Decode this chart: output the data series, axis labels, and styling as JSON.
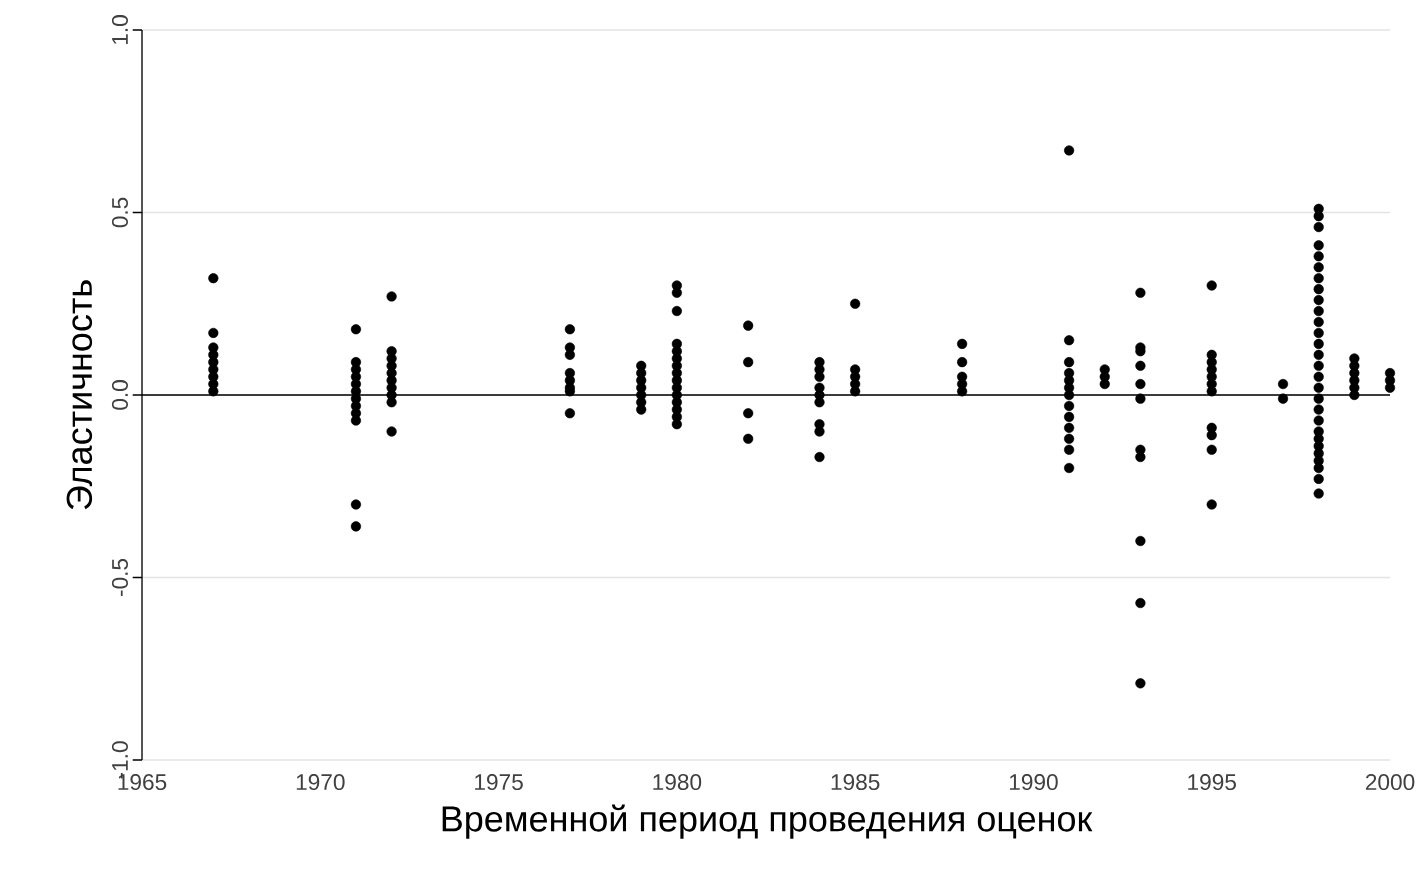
{
  "chart_data": {
    "type": "scatter",
    "xlabel": "Временной период проведения оценок",
    "ylabel": "Эластичность",
    "xlim": [
      1965,
      2000
    ],
    "ylim": [
      -1,
      1
    ],
    "xticks": [
      1965,
      1970,
      1975,
      1980,
      1985,
      1990,
      1995,
      2000
    ],
    "yticks": [
      {
        "value": -1,
        "label": "-1.0"
      },
      {
        "value": -0.5,
        "label": "-0.5"
      },
      {
        "value": 0,
        "label": "0.0"
      },
      {
        "value": 0.5,
        "label": "0.5"
      },
      {
        "value": 1,
        "label": "1.0"
      }
    ],
    "grid": "y",
    "ref_lines": [
      {
        "axis": "y",
        "value": 0,
        "color": "#000000"
      }
    ],
    "series": [
      {
        "color": "#000000",
        "x": [
          1967,
          1967,
          1967,
          1967,
          1967,
          1967,
          1967,
          1967,
          1967,
          1971,
          1971,
          1971,
          1971,
          1971,
          1971,
          1971,
          1971,
          1971,
          1971,
          1971,
          1971,
          1972,
          1972,
          1972,
          1972,
          1972,
          1972,
          1972,
          1972,
          1972,
          1972,
          1977,
          1977,
          1977,
          1977,
          1977,
          1977,
          1977,
          1977,
          1979,
          1979,
          1979,
          1979,
          1979,
          1979,
          1979,
          1980,
          1980,
          1980,
          1980,
          1980,
          1980,
          1980,
          1980,
          1980,
          1980,
          1980,
          1980,
          1980,
          1980,
          1980,
          1982,
          1982,
          1982,
          1982,
          1984,
          1984,
          1984,
          1984,
          1984,
          1984,
          1984,
          1984,
          1984,
          1985,
          1985,
          1985,
          1985,
          1985,
          1988,
          1988,
          1988,
          1988,
          1988,
          1991,
          1991,
          1991,
          1991,
          1991,
          1991,
          1991,
          1991,
          1991,
          1991,
          1991,
          1991,
          1991,
          1992,
          1992,
          1992,
          1993,
          1993,
          1993,
          1993,
          1993,
          1993,
          1993,
          1993,
          1993,
          1993,
          1993,
          1995,
          1995,
          1995,
          1995,
          1995,
          1995,
          1995,
          1995,
          1995,
          1995,
          1995,
          1997,
          1997,
          1998,
          1998,
          1998,
          1998,
          1998,
          1998,
          1998,
          1998,
          1998,
          1998,
          1998,
          1998,
          1998,
          1998,
          1998,
          1998,
          1998,
          1998,
          1998,
          1998,
          1998,
          1998,
          1998,
          1998,
          1998,
          1998,
          1998,
          1998,
          1999,
          1999,
          1999,
          1999,
          1999,
          1999,
          2000,
          2000,
          2000
        ],
        "values": [
          0.32,
          0.17,
          0.13,
          0.11,
          0.09,
          0.07,
          0.05,
          0.03,
          0.01,
          0.18,
          0.09,
          0.07,
          0.05,
          0.03,
          0.01,
          -0.01,
          -0.03,
          -0.05,
          -0.07,
          -0.3,
          -0.36,
          0.27,
          0.12,
          0.1,
          0.08,
          0.06,
          0.04,
          0.02,
          0.0,
          -0.02,
          -0.1,
          0.18,
          0.13,
          0.11,
          0.06,
          0.04,
          0.02,
          0.01,
          -0.05,
          0.08,
          0.06,
          0.04,
          0.02,
          0.0,
          -0.02,
          -0.04,
          0.3,
          0.28,
          0.23,
          0.14,
          0.12,
          0.1,
          0.08,
          0.06,
          0.04,
          0.02,
          0.0,
          -0.02,
          -0.04,
          -0.06,
          -0.08,
          0.19,
          0.09,
          -0.05,
          -0.12,
          0.09,
          0.07,
          0.05,
          0.02,
          0.0,
          -0.02,
          -0.08,
          -0.1,
          -0.17,
          0.25,
          0.07,
          0.05,
          0.03,
          0.01,
          0.14,
          0.09,
          0.05,
          0.03,
          0.01,
          0.67,
          0.15,
          0.09,
          0.06,
          0.04,
          0.02,
          0.0,
          -0.03,
          -0.06,
          -0.09,
          -0.12,
          -0.15,
          -0.2,
          0.07,
          0.05,
          0.03,
          0.28,
          0.13,
          0.12,
          0.08,
          0.03,
          -0.01,
          -0.15,
          -0.17,
          -0.4,
          -0.57,
          -0.79,
          0.3,
          0.11,
          0.09,
          0.07,
          0.05,
          0.03,
          0.01,
          -0.09,
          -0.11,
          -0.15,
          -0.3,
          0.03,
          -0.01,
          0.51,
          0.49,
          0.46,
          0.41,
          0.38,
          0.35,
          0.32,
          0.29,
          0.26,
          0.23,
          0.2,
          0.17,
          0.14,
          0.11,
          0.08,
          0.05,
          0.02,
          -0.01,
          -0.04,
          -0.07,
          -0.1,
          -0.12,
          -0.14,
          -0.16,
          -0.18,
          -0.2,
          -0.23,
          -0.27,
          0.1,
          0.08,
          0.06,
          0.04,
          0.02,
          0.0,
          0.06,
          0.04,
          0.02
        ]
      }
    ]
  }
}
